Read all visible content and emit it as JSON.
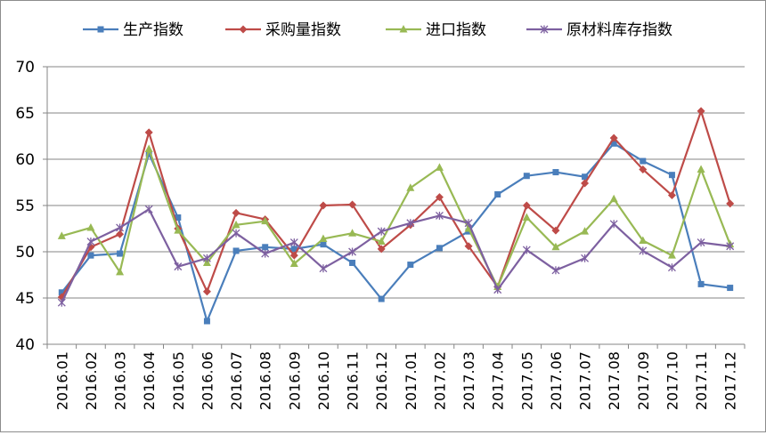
{
  "chart_data": {
    "type": "line",
    "title": "",
    "xlabel": "",
    "ylabel": "",
    "ylim": [
      40,
      70
    ],
    "yticks": [
      40,
      45,
      50,
      55,
      60,
      65,
      70
    ],
    "grid": "horizontal",
    "legend_position": "top",
    "categories": [
      "2016.01",
      "2016.02",
      "2016.03",
      "2016.04",
      "2016.05",
      "2016.06",
      "2016.07",
      "2016.08",
      "2016.09",
      "2016.10",
      "2016.11",
      "2016.12",
      "2017.01",
      "2017.02",
      "2017.03",
      "2017.04",
      "2017.05",
      "2017.06",
      "2017.07",
      "2017.08",
      "2017.09",
      "2017.10",
      "2017.11",
      "2017.12"
    ],
    "series": [
      {
        "name": "生产指数",
        "color": "#4a7ebb",
        "marker": "square",
        "values": [
          45.6,
          49.6,
          49.8,
          60.6,
          53.7,
          42.5,
          50.1,
          50.5,
          50.3,
          50.8,
          48.8,
          44.9,
          48.6,
          50.4,
          52.2,
          56.2,
          58.2,
          58.6,
          58.1,
          61.7,
          59.8,
          58.3,
          46.5,
          46.1
        ]
      },
      {
        "name": "采购量指数",
        "color": "#be4b48",
        "marker": "diamond",
        "values": [
          45.1,
          50.5,
          51.9,
          62.9,
          52.5,
          45.7,
          54.2,
          53.5,
          49.6,
          55.0,
          55.1,
          50.3,
          52.9,
          55.9,
          50.6,
          46.2,
          55.0,
          52.3,
          57.4,
          62.3,
          58.9,
          56.1,
          65.2,
          55.2
        ]
      },
      {
        "name": "进口指数",
        "color": "#98b954",
        "marker": "triangle",
        "values": [
          51.7,
          52.6,
          47.8,
          61.1,
          52.3,
          48.8,
          52.9,
          53.3,
          48.7,
          51.4,
          52.0,
          51.1,
          56.9,
          59.1,
          52.5,
          46.2,
          53.7,
          50.5,
          52.2,
          55.7,
          51.2,
          49.6,
          58.9,
          50.8
        ]
      },
      {
        "name": "原材料库存指数",
        "color": "#7d60a0",
        "marker": "star",
        "values": [
          44.5,
          51.1,
          52.6,
          54.6,
          48.4,
          49.3,
          52.0,
          49.8,
          51.0,
          48.2,
          50.0,
          52.2,
          53.1,
          53.9,
          53.1,
          45.9,
          50.2,
          48.0,
          49.3,
          53.0,
          50.1,
          48.3,
          51.0,
          50.6
        ]
      }
    ]
  }
}
